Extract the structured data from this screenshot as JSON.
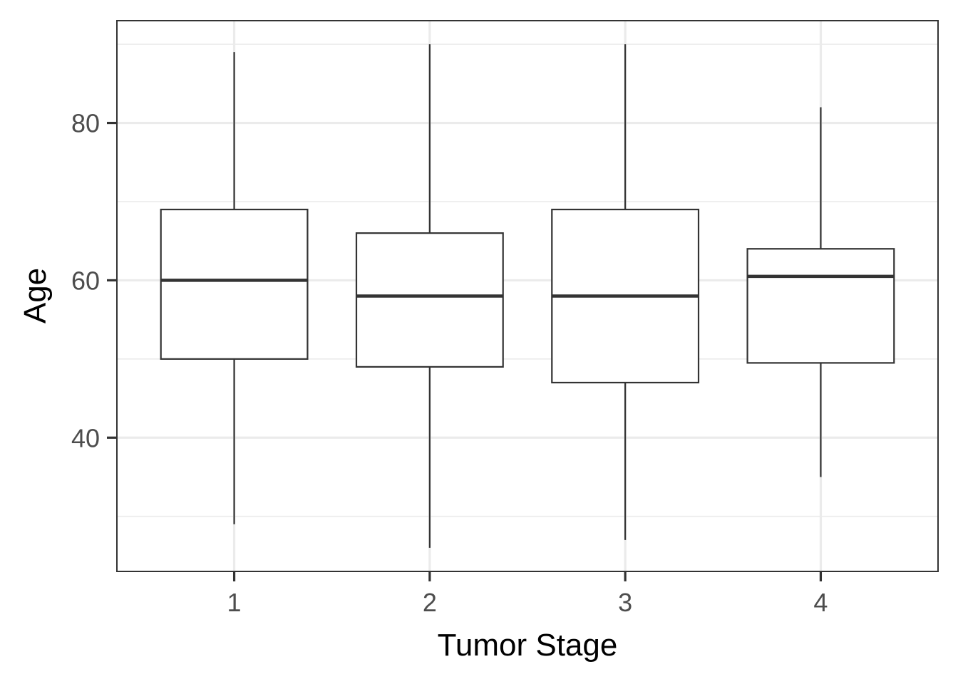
{
  "chart_data": {
    "type": "box",
    "xlabel": "Tumor Stage",
    "ylabel": "Age",
    "ylim": [
      23,
      93
    ],
    "yticks": [
      40,
      60,
      80
    ],
    "yminor": [
      30,
      50,
      70,
      90
    ],
    "grid": true,
    "categories": [
      "1",
      "2",
      "3",
      "4"
    ],
    "boxes": [
      {
        "category": "1",
        "whisker_low": 29,
        "q1": 50,
        "median": 60,
        "q3": 69,
        "whisker_high": 89
      },
      {
        "category": "2",
        "whisker_low": 26,
        "q1": 49,
        "median": 58,
        "q3": 66,
        "whisker_high": 90
      },
      {
        "category": "3",
        "whisker_low": 27,
        "q1": 47,
        "median": 58,
        "q3": 69,
        "whisker_high": 90
      },
      {
        "category": "4",
        "whisker_low": 35,
        "q1": 49.5,
        "median": 60.5,
        "q3": 64,
        "whisker_high": 82
      }
    ]
  }
}
